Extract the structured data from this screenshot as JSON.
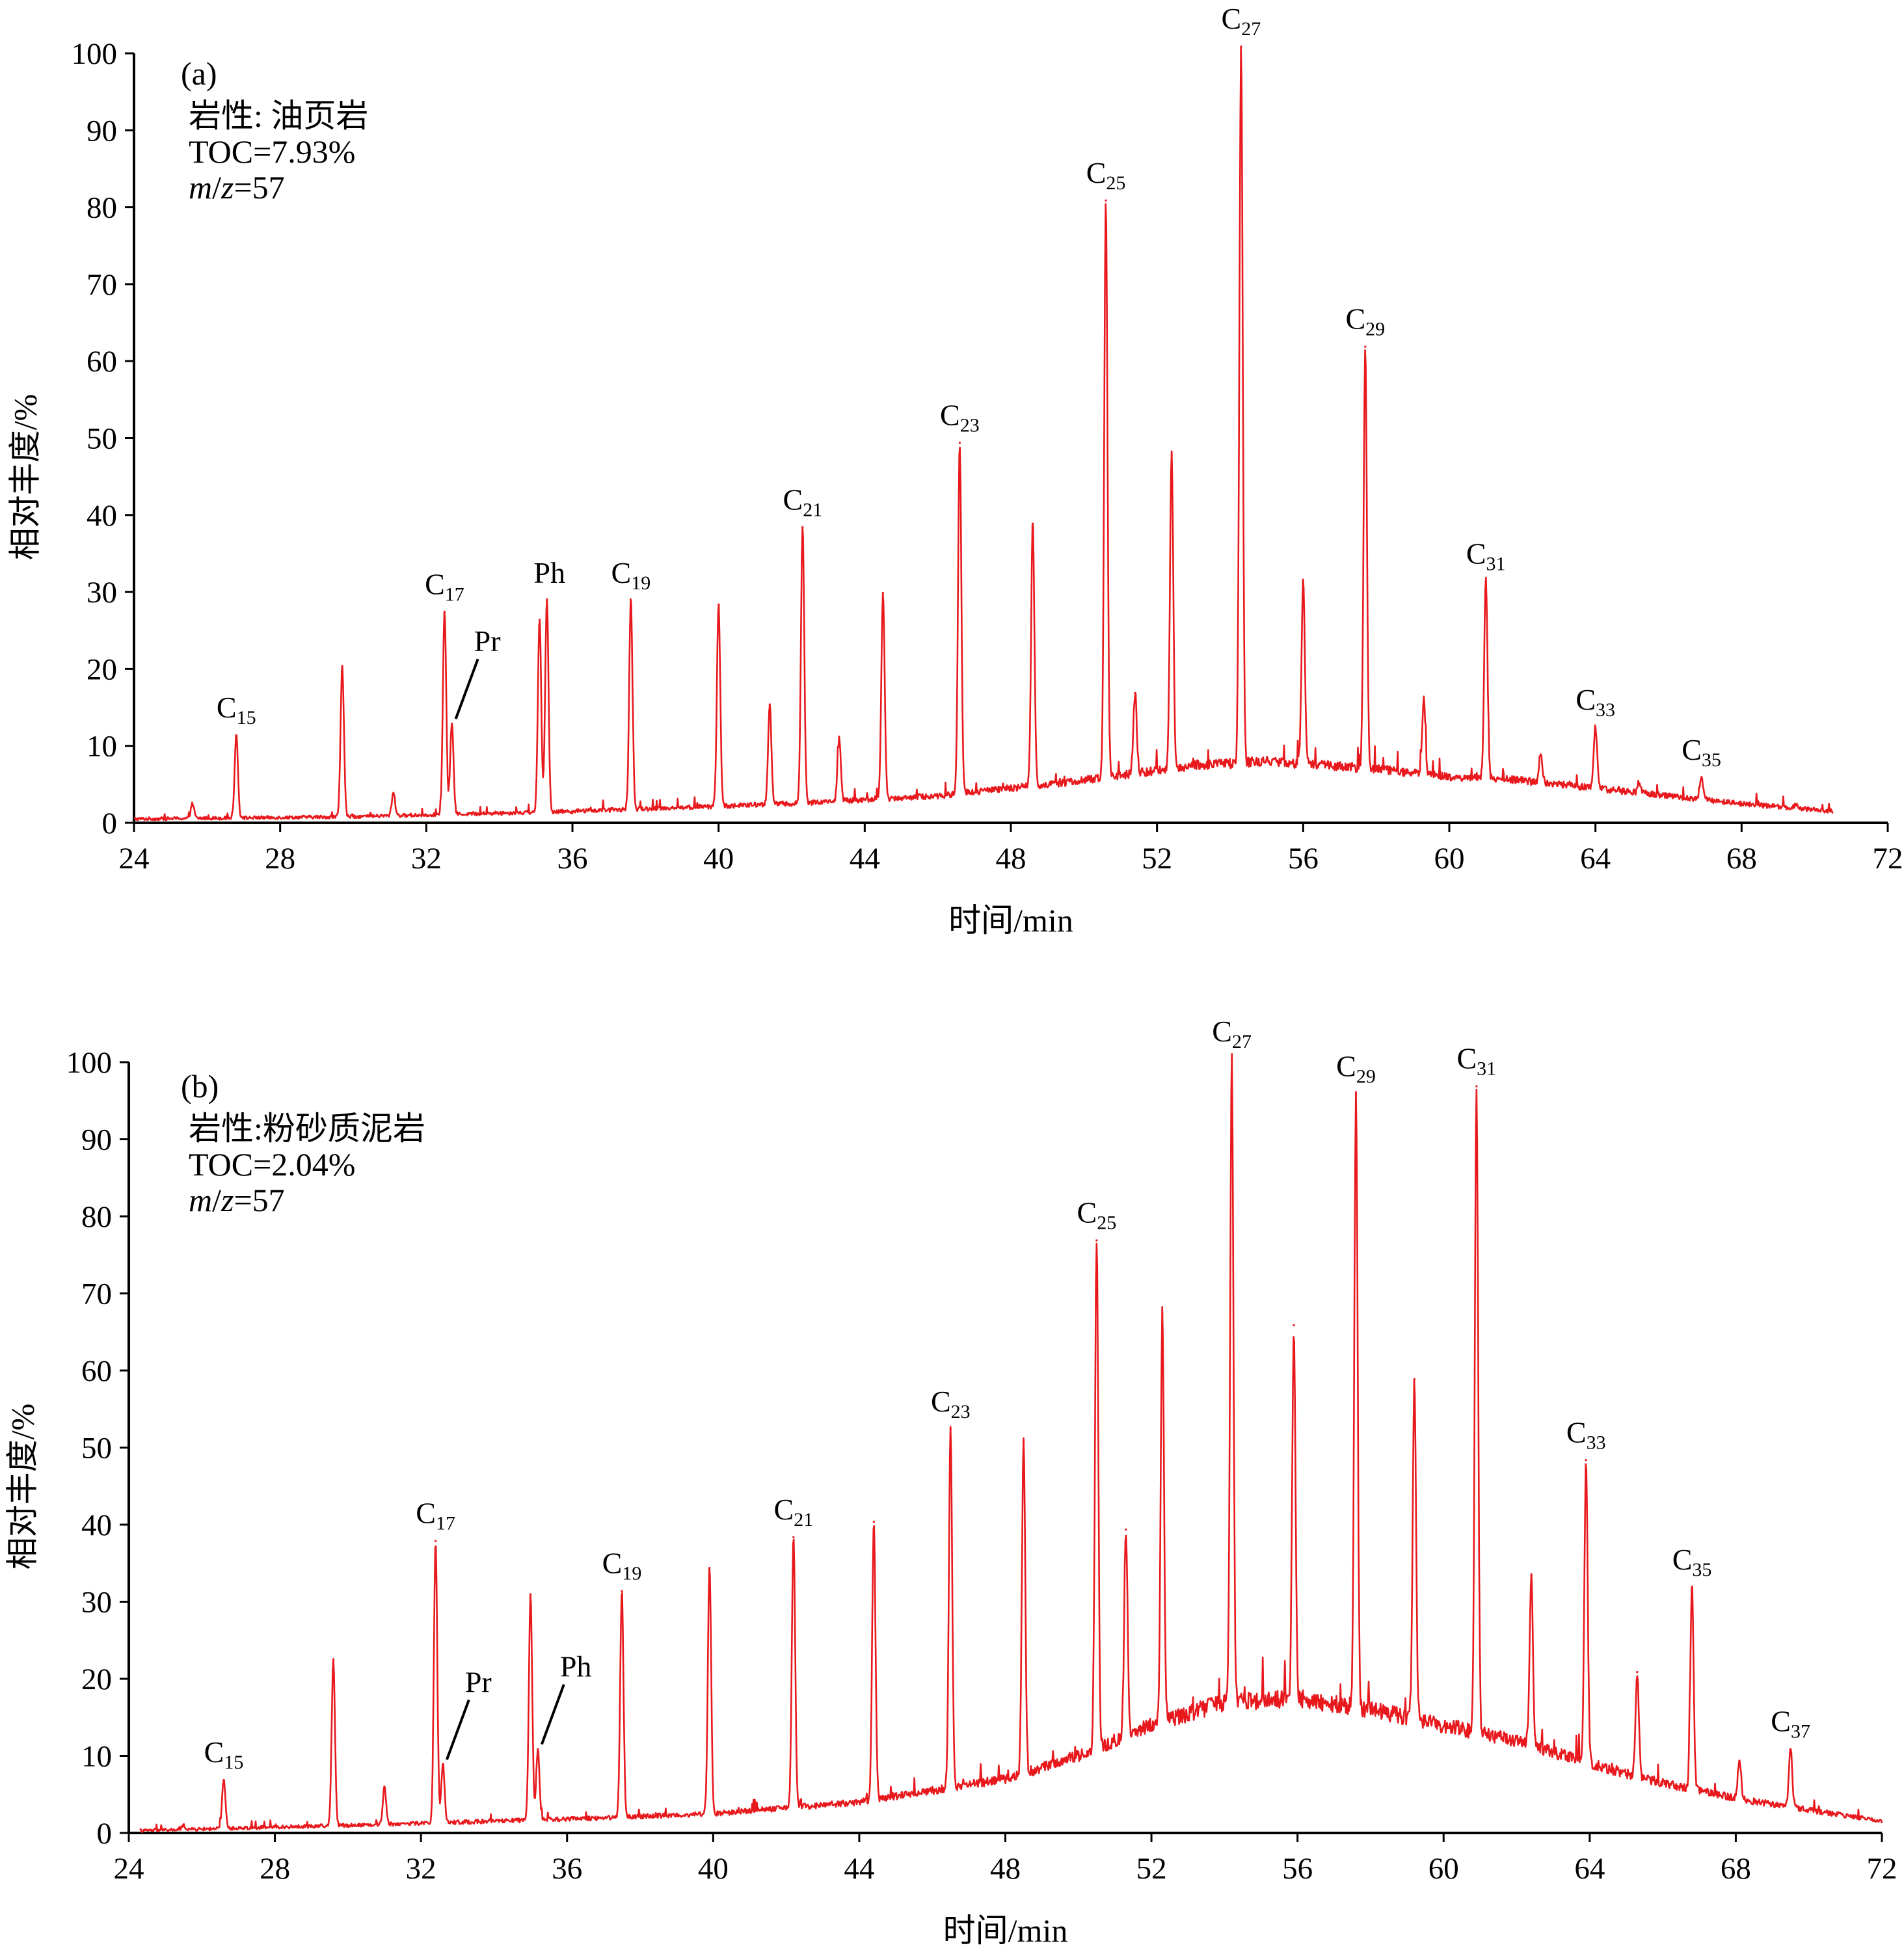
{
  "colors": {
    "trace": "#e8191d",
    "axis": "#000000"
  },
  "chart_data": [
    {
      "type": "line",
      "panel_label": "(a)",
      "info_lines": [
        {
          "label": "岩性: 油页岩"
        },
        {
          "label": "TOC=7.93%"
        },
        {
          "italic1": "m",
          "slash": "/",
          "italic2": "z",
          "rest": "=57"
        }
      ],
      "xlabel": "时间/min",
      "ylabel": "相对丰度/%",
      "xlim": [
        24,
        72
      ],
      "ylim": [
        0,
        100
      ],
      "x_ticks": [
        "24",
        "28",
        "32",
        "36",
        "40",
        "44",
        "48",
        "52",
        "56",
        "60",
        "64",
        "68",
        "72"
      ],
      "y_ticks": [
        "0",
        "10",
        "20",
        "30",
        "40",
        "50",
        "60",
        "70",
        "80",
        "90",
        "100"
      ],
      "trace_end_x": 70.5,
      "baseline": [
        [
          24,
          0.5
        ],
        [
          30,
          0.8
        ],
        [
          36,
          1.5
        ],
        [
          42,
          2.5
        ],
        [
          46,
          3.5
        ],
        [
          50,
          5.5
        ],
        [
          53,
          7.5
        ],
        [
          55,
          8
        ],
        [
          58,
          7
        ],
        [
          60,
          6
        ],
        [
          62,
          5.5
        ],
        [
          64,
          4.5
        ],
        [
          66,
          3.5
        ],
        [
          68,
          2.5
        ],
        [
          70.5,
          1.5
        ]
      ],
      "peaks": [
        {
          "x": 25.6,
          "y": 2.5
        },
        {
          "x": 26.8,
          "y": 11.5,
          "label": "C",
          "sub": "15"
        },
        {
          "x": 29.7,
          "y": 20.5
        },
        {
          "x": 31.1,
          "y": 4
        },
        {
          "x": 32.5,
          "y": 27.5,
          "label": "C",
          "sub": "17"
        },
        {
          "x": 32.7,
          "y": 13,
          "label": "Pr",
          "leader": true
        },
        {
          "x": 35.1,
          "y": 26.5
        },
        {
          "x": 35.3,
          "y": 29,
          "label": "Ph"
        },
        {
          "x": 37.6,
          "y": 29,
          "label": "C",
          "sub": "19"
        },
        {
          "x": 40.0,
          "y": 28.5
        },
        {
          "x": 41.4,
          "y": 15.5
        },
        {
          "x": 42.3,
          "y": 38.5,
          "label": "C",
          "sub": "21"
        },
        {
          "x": 43.3,
          "y": 11
        },
        {
          "x": 44.5,
          "y": 30
        },
        {
          "x": 46.6,
          "y": 49.5,
          "label": "C",
          "sub": "23"
        },
        {
          "x": 48.6,
          "y": 39
        },
        {
          "x": 50.6,
          "y": 81,
          "label": "C",
          "sub": "25"
        },
        {
          "x": 51.4,
          "y": 17
        },
        {
          "x": 52.4,
          "y": 48
        },
        {
          "x": 54.3,
          "y": 101,
          "label": "C",
          "sub": "27"
        },
        {
          "x": 56.0,
          "y": 31.5
        },
        {
          "x": 57.7,
          "y": 62,
          "label": "C",
          "sub": "29"
        },
        {
          "x": 59.3,
          "y": 16
        },
        {
          "x": 61.0,
          "y": 31.5,
          "label": "C",
          "sub": "31"
        },
        {
          "x": 62.5,
          "y": 9
        },
        {
          "x": 64.0,
          "y": 12.5,
          "label": "C",
          "sub": "33"
        },
        {
          "x": 65.2,
          "y": 5
        },
        {
          "x": 66.9,
          "y": 6,
          "label": "C",
          "sub": "35"
        },
        {
          "x": 69.5,
          "y": 2.5
        }
      ]
    },
    {
      "type": "line",
      "panel_label": "(b)",
      "info_lines": [
        {
          "label": "岩性:粉砂质泥岩"
        },
        {
          "label": "TOC=2.04%"
        },
        {
          "italic1": "m",
          "slash": "/",
          "italic2": "z",
          "rest": "=57"
        }
      ],
      "xlabel": "时间/min",
      "ylabel": "相对丰度/%",
      "xlim": [
        24,
        72
      ],
      "ylim": [
        0,
        100
      ],
      "x_ticks": [
        "24",
        "28",
        "32",
        "36",
        "40",
        "44",
        "48",
        "52",
        "56",
        "60",
        "64",
        "68",
        "72"
      ],
      "y_ticks": [
        "0",
        "10",
        "20",
        "30",
        "40",
        "50",
        "60",
        "70",
        "80",
        "90",
        "100"
      ],
      "trace_end_x": 72,
      "baseline": [
        [
          24.3,
          0.3
        ],
        [
          30,
          1
        ],
        [
          36,
          1.8
        ],
        [
          40,
          2.5
        ],
        [
          44,
          4
        ],
        [
          48,
          7
        ],
        [
          50,
          10
        ],
        [
          52,
          14
        ],
        [
          54,
          17
        ],
        [
          56,
          17.5
        ],
        [
          58,
          16
        ],
        [
          60,
          14
        ],
        [
          62,
          12
        ],
        [
          64,
          9
        ],
        [
          66,
          6.5
        ],
        [
          68,
          4.5
        ],
        [
          70,
          3
        ],
        [
          72,
          1.5
        ]
      ],
      "peaks": [
        {
          "x": 25.5,
          "y": 1
        },
        {
          "x": 26.6,
          "y": 7,
          "label": "C",
          "sub": "15"
        },
        {
          "x": 29.6,
          "y": 22.5
        },
        {
          "x": 31.0,
          "y": 6
        },
        {
          "x": 32.4,
          "y": 38,
          "label": "C",
          "sub": "17"
        },
        {
          "x": 32.6,
          "y": 9,
          "label": "Pr",
          "leader": true
        },
        {
          "x": 35.0,
          "y": 31
        },
        {
          "x": 35.2,
          "y": 11,
          "label": "Ph",
          "leader": true
        },
        {
          "x": 37.5,
          "y": 31.5,
          "label": "C",
          "sub": "19"
        },
        {
          "x": 39.9,
          "y": 34.5
        },
        {
          "x": 42.2,
          "y": 38.5,
          "label": "C",
          "sub": "21"
        },
        {
          "x": 44.4,
          "y": 40.5
        },
        {
          "x": 46.5,
          "y": 52.5,
          "label": "C",
          "sub": "23"
        },
        {
          "x": 48.5,
          "y": 51
        },
        {
          "x": 50.5,
          "y": 77,
          "label": "C",
          "sub": "25"
        },
        {
          "x": 51.3,
          "y": 39.5
        },
        {
          "x": 52.3,
          "y": 67.5
        },
        {
          "x": 54.2,
          "y": 100.5,
          "label": "C",
          "sub": "27"
        },
        {
          "x": 55.9,
          "y": 66
        },
        {
          "x": 57.6,
          "y": 96,
          "label": "C",
          "sub": "29"
        },
        {
          "x": 59.2,
          "y": 59
        },
        {
          "x": 60.9,
          "y": 97,
          "label": "C",
          "sub": "31"
        },
        {
          "x": 62.4,
          "y": 33.5
        },
        {
          "x": 63.9,
          "y": 48.5,
          "label": "C",
          "sub": "33"
        },
        {
          "x": 65.3,
          "y": 21
        },
        {
          "x": 66.8,
          "y": 32,
          "label": "C",
          "sub": "35"
        },
        {
          "x": 68.1,
          "y": 9.5
        },
        {
          "x": 69.5,
          "y": 11,
          "label": "C",
          "sub": "37"
        }
      ]
    }
  ]
}
